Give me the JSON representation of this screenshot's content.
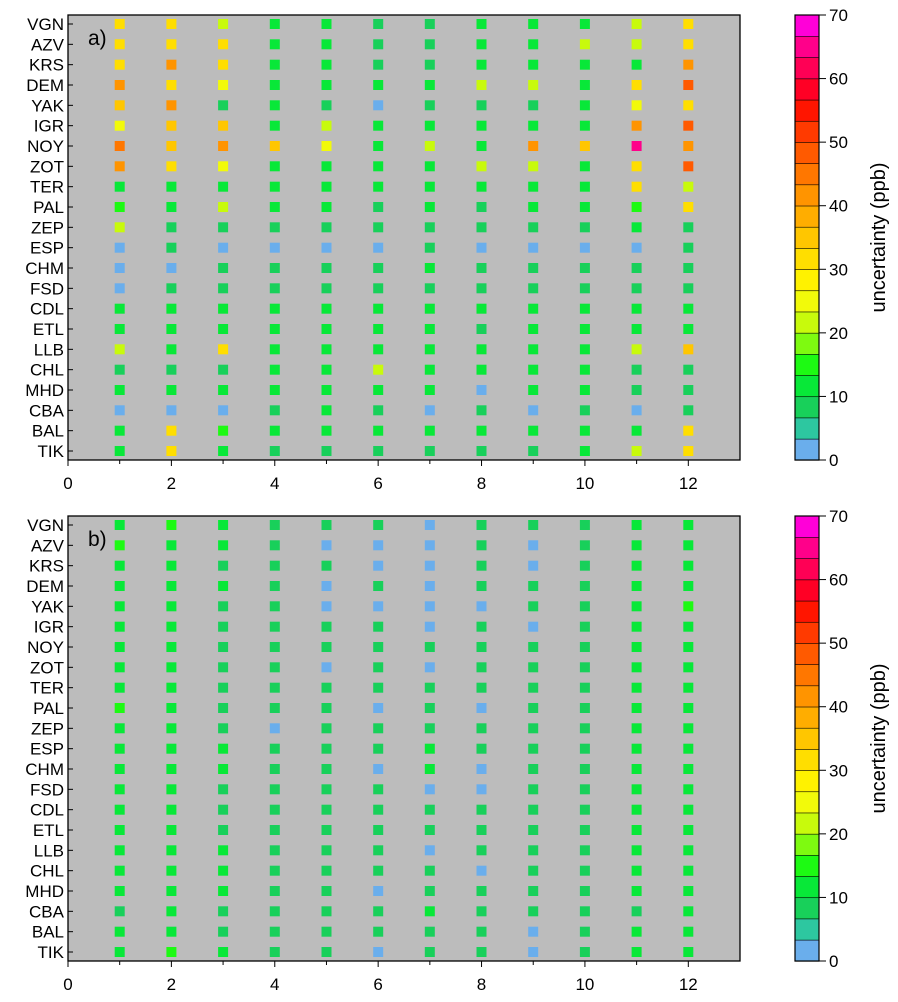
{
  "chart_data": [
    {
      "type": "heatmap",
      "panel_label": "a)",
      "title": "",
      "xlabel": "",
      "ylabel": "",
      "x": [
        1,
        2,
        3,
        4,
        5,
        6,
        7,
        8,
        9,
        10,
        11,
        12
      ],
      "xlim": [
        0,
        13
      ],
      "xticks": [
        0,
        2,
        4,
        6,
        8,
        10,
        12
      ],
      "stations": [
        "VGN",
        "AZV",
        "KRS",
        "DEM",
        "YAK",
        "IGR",
        "NOY",
        "ZOT",
        "TER",
        "PAL",
        "ZEP",
        "ESP",
        "CHM",
        "FSD",
        "CDL",
        "ETL",
        "LLB",
        "CHL",
        "MHD",
        "CBA",
        "BAL",
        "TIK"
      ],
      "values": [
        [
          32,
          32,
          22,
          12,
          12,
          8,
          8,
          12,
          12,
          12,
          22,
          32
        ],
        [
          32,
          32,
          32,
          12,
          12,
          8,
          8,
          12,
          12,
          22,
          22,
          32
        ],
        [
          32,
          42,
          32,
          12,
          12,
          8,
          8,
          12,
          12,
          12,
          12,
          42
        ],
        [
          42,
          32,
          27,
          12,
          12,
          12,
          12,
          22,
          22,
          12,
          32,
          52
        ],
        [
          37,
          42,
          8,
          12,
          8,
          2,
          8,
          8,
          8,
          12,
          27,
          32
        ],
        [
          27,
          37,
          37,
          12,
          22,
          12,
          12,
          12,
          12,
          12,
          42,
          52
        ],
        [
          47,
          37,
          42,
          37,
          27,
          12,
          22,
          12,
          42,
          37,
          67,
          42
        ],
        [
          42,
          32,
          27,
          12,
          12,
          12,
          12,
          22,
          22,
          12,
          32,
          52
        ],
        [
          12,
          12,
          12,
          12,
          12,
          12,
          12,
          12,
          12,
          12,
          32,
          22
        ],
        [
          17,
          12,
          22,
          12,
          12,
          8,
          12,
          8,
          12,
          12,
          17,
          32
        ],
        [
          22,
          8,
          8,
          8,
          8,
          8,
          8,
          8,
          8,
          8,
          12,
          8
        ],
        [
          2,
          8,
          2,
          2,
          2,
          2,
          8,
          2,
          2,
          2,
          2,
          8
        ],
        [
          2,
          2,
          8,
          8,
          8,
          8,
          12,
          8,
          8,
          8,
          8,
          8
        ],
        [
          2,
          8,
          8,
          8,
          8,
          8,
          8,
          8,
          8,
          8,
          8,
          8
        ],
        [
          12,
          12,
          12,
          12,
          12,
          12,
          12,
          12,
          12,
          12,
          12,
          12
        ],
        [
          12,
          12,
          12,
          12,
          12,
          12,
          12,
          8,
          12,
          12,
          12,
          12
        ],
        [
          22,
          12,
          32,
          12,
          12,
          12,
          12,
          12,
          12,
          12,
          22,
          37
        ],
        [
          8,
          8,
          8,
          12,
          12,
          22,
          12,
          12,
          12,
          12,
          8,
          8
        ],
        [
          12,
          12,
          12,
          12,
          12,
          12,
          12,
          2,
          12,
          12,
          8,
          8
        ],
        [
          2,
          2,
          2,
          8,
          12,
          8,
          2,
          8,
          2,
          8,
          2,
          8
        ],
        [
          12,
          32,
          17,
          12,
          12,
          12,
          12,
          12,
          12,
          12,
          12,
          32
        ],
        [
          12,
          32,
          12,
          8,
          8,
          8,
          8,
          8,
          8,
          12,
          22,
          32
        ]
      ],
      "colorbar": {
        "label": "uncertainty (ppb)",
        "vmin": 0,
        "vmax": 70,
        "step": 3.5,
        "ticks": [
          0,
          10,
          20,
          30,
          40,
          50,
          60,
          70
        ],
        "colors": [
          "#6aaeec",
          "#2dc7a0",
          "#18d05a",
          "#08e838",
          "#1dfa13",
          "#7efa10",
          "#c8fa0c",
          "#f2fa0a",
          "#fff200",
          "#ffde00",
          "#ffc600",
          "#ffad00",
          "#ff9400",
          "#ff7700",
          "#ff5a00",
          "#ff3a00",
          "#ff1500",
          "#ff0025",
          "#ff0055",
          "#ff008a",
          "#ff00d8"
        ]
      },
      "background": "#bcbcbc"
    },
    {
      "type": "heatmap",
      "panel_label": "b)",
      "title": "",
      "xlabel": "",
      "ylabel": "",
      "x": [
        1,
        2,
        3,
        4,
        5,
        6,
        7,
        8,
        9,
        10,
        11,
        12
      ],
      "xlim": [
        0,
        13
      ],
      "xticks": [
        0,
        2,
        4,
        6,
        8,
        10,
        12
      ],
      "stations": [
        "VGN",
        "AZV",
        "KRS",
        "DEM",
        "YAK",
        "IGR",
        "NOY",
        "ZOT",
        "TER",
        "PAL",
        "ZEP",
        "ESP",
        "CHM",
        "FSD",
        "CDL",
        "ETL",
        "LLB",
        "CHL",
        "MHD",
        "CBA",
        "BAL",
        "TIK"
      ],
      "values": [
        [
          12,
          17,
          12,
          8,
          8,
          8,
          2,
          8,
          8,
          8,
          12,
          12
        ],
        [
          17,
          12,
          12,
          8,
          2,
          2,
          2,
          8,
          2,
          8,
          12,
          12
        ],
        [
          12,
          12,
          8,
          8,
          8,
          2,
          2,
          8,
          2,
          8,
          12,
          12
        ],
        [
          12,
          12,
          12,
          8,
          2,
          8,
          2,
          8,
          8,
          8,
          12,
          12
        ],
        [
          12,
          12,
          8,
          8,
          2,
          2,
          2,
          2,
          8,
          8,
          12,
          17
        ],
        [
          12,
          12,
          8,
          8,
          8,
          8,
          2,
          8,
          2,
          8,
          12,
          12
        ],
        [
          12,
          12,
          8,
          8,
          8,
          8,
          8,
          8,
          8,
          8,
          12,
          12
        ],
        [
          12,
          12,
          8,
          8,
          2,
          8,
          2,
          8,
          8,
          8,
          12,
          12
        ],
        [
          12,
          12,
          8,
          8,
          8,
          8,
          8,
          8,
          8,
          8,
          12,
          12
        ],
        [
          17,
          12,
          8,
          8,
          8,
          2,
          8,
          2,
          8,
          8,
          12,
          12
        ],
        [
          12,
          12,
          8,
          2,
          8,
          8,
          8,
          8,
          8,
          8,
          12,
          12
        ],
        [
          12,
          12,
          12,
          8,
          8,
          8,
          12,
          8,
          8,
          8,
          12,
          12
        ],
        [
          12,
          12,
          12,
          8,
          8,
          2,
          12,
          2,
          8,
          8,
          12,
          12
        ],
        [
          12,
          12,
          8,
          8,
          8,
          8,
          2,
          2,
          8,
          8,
          12,
          12
        ],
        [
          12,
          12,
          8,
          8,
          8,
          8,
          8,
          8,
          8,
          8,
          12,
          12
        ],
        [
          12,
          12,
          8,
          8,
          8,
          8,
          8,
          8,
          8,
          8,
          12,
          12
        ],
        [
          12,
          12,
          12,
          8,
          8,
          8,
          2,
          8,
          8,
          8,
          12,
          12
        ],
        [
          12,
          12,
          12,
          8,
          8,
          8,
          8,
          2,
          8,
          8,
          12,
          12
        ],
        [
          12,
          12,
          12,
          8,
          8,
          2,
          8,
          8,
          8,
          8,
          12,
          12
        ],
        [
          8,
          12,
          8,
          8,
          8,
          8,
          12,
          8,
          8,
          8,
          8,
          12
        ],
        [
          12,
          12,
          8,
          8,
          8,
          8,
          8,
          8,
          2,
          8,
          12,
          12
        ],
        [
          12,
          17,
          12,
          8,
          8,
          2,
          8,
          8,
          2,
          8,
          12,
          12
        ]
      ],
      "colorbar": {
        "label": "uncertainty (ppb)",
        "vmin": 0,
        "vmax": 70,
        "step": 3.5,
        "ticks": [
          0,
          10,
          20,
          30,
          40,
          50,
          60,
          70
        ],
        "colors": [
          "#6aaeec",
          "#2dc7a0",
          "#18d05a",
          "#08e838",
          "#1dfa13",
          "#7efa10",
          "#c8fa0c",
          "#f2fa0a",
          "#fff200",
          "#ffde00",
          "#ffc600",
          "#ffad00",
          "#ff9400",
          "#ff7700",
          "#ff5a00",
          "#ff3a00",
          "#ff1500",
          "#ff0025",
          "#ff0055",
          "#ff008a",
          "#ff00d8"
        ]
      },
      "background": "#bcbcbc"
    }
  ]
}
